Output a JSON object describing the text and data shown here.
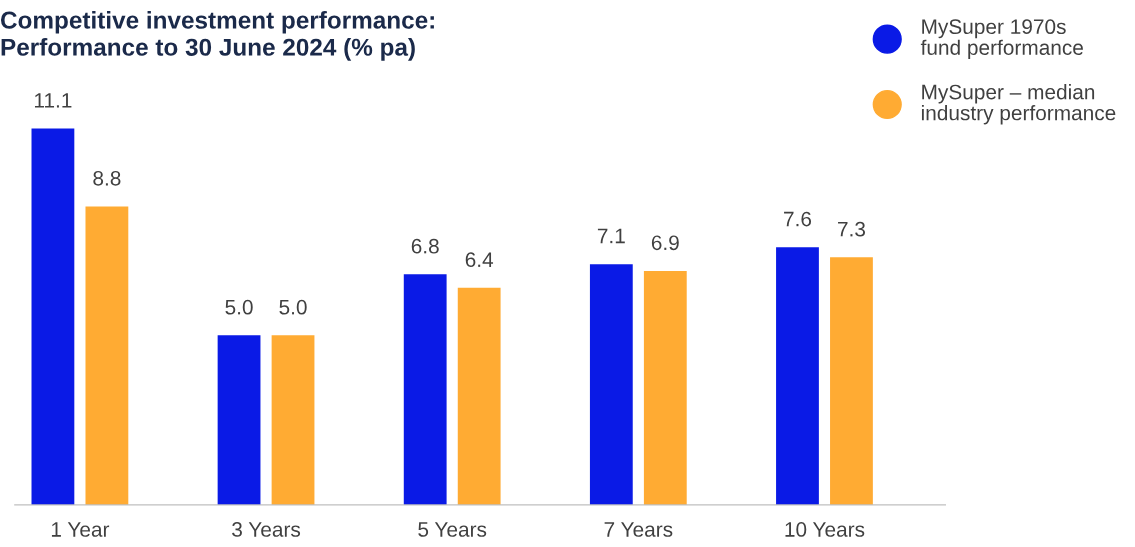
{
  "chart_data": {
    "type": "bar",
    "title": "Competitive investment performance:\nPerformance to 30 June 2024 (% pa)",
    "categories": [
      "1 Year",
      "3 Years",
      "5 Years",
      "7 Years",
      "10 Years"
    ],
    "series": [
      {
        "name": "MySuper 1970s fund performance",
        "color": "#0a1ae6",
        "values": [
          11.1,
          5.0,
          6.8,
          7.1,
          7.6
        ],
        "value_labels": [
          "11.1",
          "5.0",
          "6.8",
          "7.1",
          "7.6"
        ]
      },
      {
        "name": "MySuper – median industry performance",
        "color": "#ffab33",
        "values": [
          8.8,
          5.0,
          6.4,
          6.9,
          7.3
        ],
        "value_labels": [
          "8.8",
          "5.0",
          "6.4",
          "6.9",
          "7.3"
        ]
      }
    ],
    "legend": "top right",
    "tick_labels": "x"
  }
}
